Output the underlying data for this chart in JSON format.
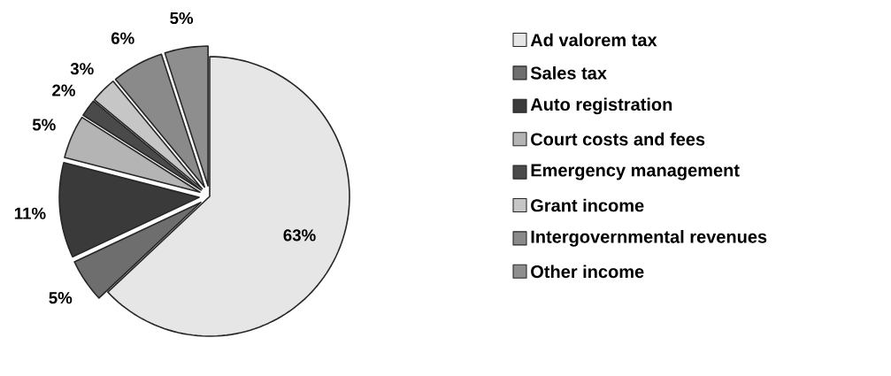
{
  "chart_data": {
    "type": "pie",
    "categories": [
      "Ad valorem tax",
      "Sales tax",
      "Auto registration",
      "Court costs and fees",
      "Emergency management",
      "Grant income",
      "Intergovernmental revenues",
      "Other income"
    ],
    "values": [
      63,
      5,
      11,
      5,
      2,
      3,
      6,
      5
    ],
    "value_labels": [
      "63%",
      "5%",
      "11%",
      "5%",
      "2%",
      "3%",
      "6%",
      "5%"
    ],
    "colors": [
      "#e6e6e6",
      "#6e6e6e",
      "#3a3a3a",
      "#b4b4b4",
      "#4a4a4a",
      "#c6c6c6",
      "#8a8a8a",
      "#8e8e8e"
    ],
    "legend": "right"
  }
}
